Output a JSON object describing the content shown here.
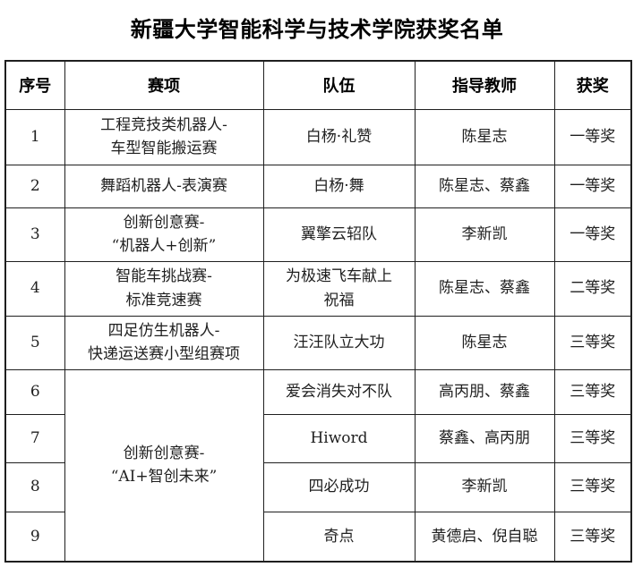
{
  "title": "新疆大学智能科学与技术学院获奖名单",
  "colors": {
    "background": "#ffffff",
    "border": "#1f1f1f",
    "text": "#1f1f1f"
  },
  "table": {
    "headers": [
      "序号",
      "赛项",
      "队伍",
      "指导教师",
      "获奖"
    ],
    "rows": [
      {
        "no": "1",
        "competition": "工程竞技类机器人-\n车型智能搬运赛",
        "team": "白杨·礼赞",
        "advisors": "陈星志",
        "award": "一等奖"
      },
      {
        "no": "2",
        "competition": "舞蹈机器人-表演赛",
        "team": "白杨·舞",
        "advisors": "陈星志、蔡鑫",
        "award": "一等奖"
      },
      {
        "no": "3",
        "competition": "创新创意赛-\n“机器人+创新”",
        "team": "翼擎云轺队",
        "advisors": "李新凯",
        "award": "一等奖"
      },
      {
        "no": "4",
        "competition": "智能车挑战赛-\n标准竞速赛",
        "team": "为极速飞车献上\n祝福",
        "advisors": "陈星志、蔡鑫",
        "award": "二等奖"
      },
      {
        "no": "5",
        "competition": "四足仿生机器人-\n快递运送赛小型组赛项",
        "team": "汪汪队立大功",
        "advisors": "陈星志",
        "award": "三等奖"
      },
      {
        "no": "6",
        "competition": "创新创意赛-\n“AI+智创未来”",
        "competition_rowspan": 4,
        "team": "爱会消失对不队",
        "advisors": "高丙朋、蔡鑫",
        "award": "三等奖"
      },
      {
        "no": "7",
        "competition": null,
        "team": "Hiword",
        "advisors": "蔡鑫、高丙朋",
        "award": "三等奖"
      },
      {
        "no": "8",
        "competition": null,
        "team": "四必成功",
        "advisors": "李新凯",
        "award": "三等奖"
      },
      {
        "no": "9",
        "competition": null,
        "team": "奇点",
        "advisors": "黄德启、倪自聪",
        "award": "三等奖"
      }
    ]
  }
}
